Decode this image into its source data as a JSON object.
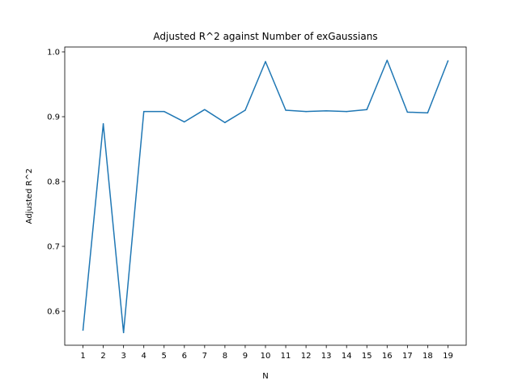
{
  "chart_data": {
    "type": "line",
    "title": "Adjusted R^2 against Number of exGaussians",
    "xlabel": "N",
    "ylabel": "Adjusted R^2",
    "x": [
      1,
      2,
      3,
      4,
      5,
      6,
      7,
      8,
      9,
      10,
      11,
      12,
      13,
      14,
      15,
      16,
      17,
      18,
      19
    ],
    "series": [
      {
        "values": [
          0.571,
          0.889,
          0.567,
          0.908,
          0.908,
          0.892,
          0.911,
          0.891,
          0.91,
          0.985,
          0.91,
          0.908,
          0.909,
          0.908,
          0.911,
          0.987,
          0.907,
          0.906,
          0.986
        ],
        "color": "#1f77b4"
      }
    ],
    "xlim": [
      0.1,
      19.9
    ],
    "ylim": [
      0.5475,
      1.0075
    ],
    "x_ticks": [
      "1",
      "2",
      "3",
      "4",
      "5",
      "6",
      "7",
      "8",
      "9",
      "10",
      "11",
      "12",
      "13",
      "14",
      "15",
      "16",
      "17",
      "18",
      "19"
    ],
    "y_ticks": [
      "0.6",
      "0.7",
      "0.8",
      "0.9",
      "1.0"
    ],
    "grid": false,
    "legend": false
  }
}
